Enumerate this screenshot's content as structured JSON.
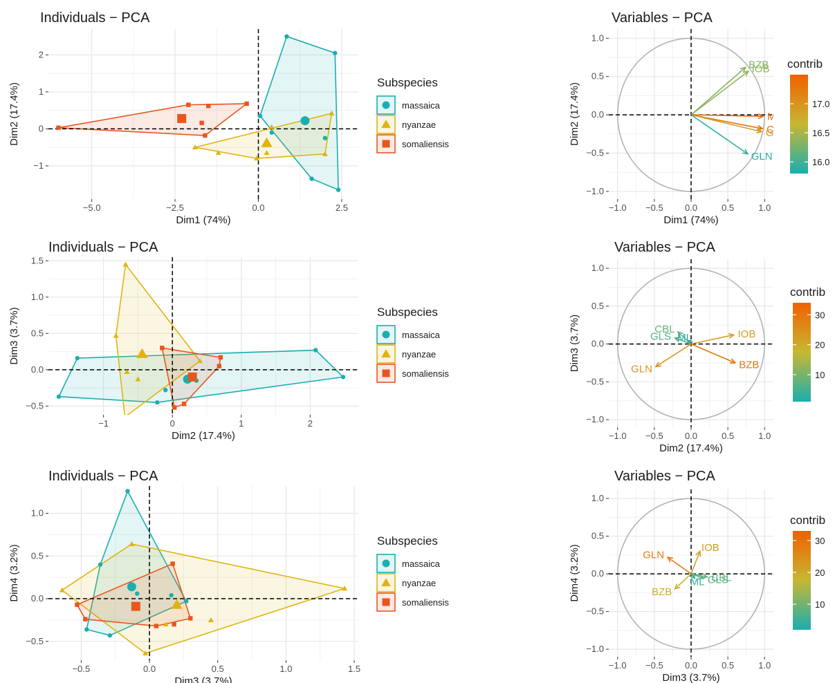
{
  "colors": {
    "massaica": "#1AAEB0",
    "nyanzae": "#E0B40E",
    "somaliensis": "#E8561E",
    "gradient": [
      "#1AAEB0",
      "#C7B732",
      "#F06000"
    ]
  },
  "chart_data": [
    {
      "type": "scatter",
      "id": "ind12",
      "title": "Individuals − PCA",
      "xlabel": "Dim1 (74%)",
      "ylabel": "Dim2 (17.4%)",
      "xlim": [
        -6.3,
        3.0
      ],
      "ylim": [
        -1.9,
        2.7
      ],
      "xticks": [
        -5,
        -2.5,
        0,
        2.5
      ],
      "xticklabels": [
        "−5.0",
        "−2.5",
        "0.0",
        "2.5"
      ],
      "yticks": [
        -1,
        0,
        1,
        2
      ],
      "yticklabels": [
        "−1",
        "0",
        "1",
        "2"
      ],
      "legend_title": "Subspecies",
      "legend_labels": [
        "massaica",
        "nyanzae",
        "somaliensis"
      ],
      "series": [
        {
          "name": "massaica",
          "shape": "circle",
          "points": [
            [
              0.4,
              -0.1
            ],
            [
              0.85,
              2.5
            ],
            [
              2.3,
              2.05
            ],
            [
              2.0,
              -0.25
            ],
            [
              1.6,
              -1.35
            ],
            [
              2.4,
              -1.65
            ],
            [
              0.05,
              0.35
            ]
          ],
          "hull": [
            [
              0.05,
              0.35
            ],
            [
              0.85,
              2.5
            ],
            [
              2.3,
              2.05
            ],
            [
              2.4,
              -1.65
            ],
            [
              1.6,
              -1.35
            ],
            [
              0.05,
              0.35
            ]
          ],
          "centroid": [
            1.4,
            0.22
          ]
        },
        {
          "name": "nyanzae",
          "shape": "triangle",
          "points": [
            [
              -1.9,
              -0.5
            ],
            [
              -1.2,
              -0.65
            ],
            [
              -0.05,
              -0.8
            ],
            [
              0.25,
              -0.65
            ],
            [
              0.4,
              0.05
            ],
            [
              2.2,
              0.42
            ],
            [
              2.0,
              -0.68
            ]
          ],
          "hull": [
            [
              -1.9,
              -0.5
            ],
            [
              2.2,
              0.42
            ],
            [
              2.0,
              -0.68
            ],
            [
              -0.05,
              -0.8
            ],
            [
              -1.9,
              -0.5
            ]
          ],
          "centroid": [
            0.25,
            -0.38
          ]
        },
        {
          "name": "somaliensis",
          "shape": "square",
          "points": [
            [
              -6.0,
              0.03
            ],
            [
              -2.1,
              0.65
            ],
            [
              -1.7,
              0.16
            ],
            [
              -1.5,
              0.62
            ],
            [
              -0.35,
              0.68
            ],
            [
              -1.6,
              -0.18
            ]
          ],
          "hull": [
            [
              -6.0,
              0.03
            ],
            [
              -2.1,
              0.65
            ],
            [
              -0.35,
              0.68
            ],
            [
              -1.6,
              -0.18
            ],
            [
              -6.0,
              0.03
            ]
          ],
          "centroid": [
            -2.3,
            0.28
          ]
        }
      ]
    },
    {
      "type": "vector",
      "id": "var12",
      "title": "Variables − PCA",
      "xlabel": "Dim1 (74%)",
      "ylabel": "Dim2 (17.4%)",
      "xlim": [
        -1.12,
        1.12
      ],
      "ylim": [
        -1.1,
        1.12
      ],
      "xticks": [
        -1,
        -0.5,
        0,
        0.5,
        1
      ],
      "xticklabels": [
        "−1.0",
        "−0.5",
        "0.0",
        "0.5",
        "1.0"
      ],
      "yticks": [
        -1,
        -0.5,
        0,
        0.5,
        1
      ],
      "yticklabels": [
        "−1.0",
        "−0.5",
        "0.0",
        "0.5",
        "1.0"
      ],
      "legend_title": "contrib",
      "color_range": [
        15.8,
        17.5
      ],
      "color_ticks": [
        16.0,
        16.5,
        17.0
      ],
      "color_ticklabels": [
        "16.0",
        "16.5",
        "17.0"
      ],
      "vectors": [
        {
          "name": "BZB",
          "x": 0.74,
          "y": 0.62,
          "contrib": 16.3
        },
        {
          "name": "IOB",
          "x": 0.78,
          "y": 0.57,
          "contrib": 16.4
        },
        {
          "name": "ML",
          "x": 0.98,
          "y": -0.02,
          "contrib": 17.4
        },
        {
          "name": "CBL",
          "x": 0.97,
          "y": -0.18,
          "contrib": 17.3
        },
        {
          "name": "GLS",
          "x": 0.96,
          "y": -0.22,
          "contrib": 16.9
        },
        {
          "name": "GLN",
          "x": 0.77,
          "y": -0.51,
          "contrib": 15.9
        }
      ]
    },
    {
      "type": "scatter",
      "id": "ind23",
      "title": "Individuals − PCA",
      "xlabel": "Dim2 (17.4%)",
      "ylabel": "Dim3 (3.7%)",
      "xlim": [
        -1.8,
        2.7
      ],
      "ylim": [
        -0.62,
        1.55
      ],
      "xticks": [
        -1,
        0,
        1,
        2
      ],
      "xticklabels": [
        "−1",
        "0",
        "1",
        "2"
      ],
      "yticks": [
        -0.5,
        0,
        0.5,
        1,
        1.5
      ],
      "yticklabels": [
        "−0.5",
        "0.0",
        "0.5",
        "1.0",
        "1.5"
      ],
      "legend_title": "Subspecies",
      "legend_labels": [
        "massaica",
        "nyanzae",
        "somaliensis"
      ],
      "series": [
        {
          "name": "massaica",
          "shape": "circle",
          "points": [
            [
              -1.65,
              -0.37
            ],
            [
              -1.38,
              0.16
            ],
            [
              2.08,
              0.27
            ],
            [
              2.48,
              -0.1
            ],
            [
              -0.22,
              -0.45
            ],
            [
              -0.1,
              -0.28
            ],
            [
              0.35,
              -0.15
            ]
          ],
          "hull": [
            [
              -1.65,
              -0.37
            ],
            [
              -1.38,
              0.16
            ],
            [
              2.08,
              0.27
            ],
            [
              2.48,
              -0.1
            ],
            [
              -0.22,
              -0.45
            ],
            [
              -1.65,
              -0.37
            ]
          ],
          "centroid": [
            0.22,
            -0.13
          ]
        },
        {
          "name": "nyanzae",
          "shape": "triangle",
          "points": [
            [
              -0.68,
              1.45
            ],
            [
              -0.82,
              0.47
            ],
            [
              -0.66,
              -0.03
            ],
            [
              -0.5,
              -0.13
            ],
            [
              -0.69,
              -0.65
            ],
            [
              0.4,
              0.12
            ]
          ],
          "hull": [
            [
              -0.68,
              1.45
            ],
            [
              0.4,
              0.12
            ],
            [
              -0.69,
              -0.65
            ],
            [
              -0.82,
              0.47
            ],
            [
              -0.68,
              1.45
            ]
          ],
          "centroid": [
            -0.44,
            0.22
          ]
        },
        {
          "name": "somaliensis",
          "shape": "square",
          "points": [
            [
              -0.15,
              0.3
            ],
            [
              0.7,
              0.17
            ],
            [
              0.68,
              0.05
            ],
            [
              0.03,
              -0.52
            ],
            [
              0.17,
              -0.47
            ]
          ],
          "hull": [
            [
              -0.15,
              0.3
            ],
            [
              0.7,
              0.17
            ],
            [
              0.68,
              0.05
            ],
            [
              0.17,
              -0.47
            ],
            [
              0.03,
              -0.52
            ],
            [
              -0.15,
              0.3
            ]
          ],
          "centroid": [
            0.29,
            -0.1
          ]
        }
      ]
    },
    {
      "type": "vector",
      "id": "var23",
      "title": "Variables − PCA",
      "xlabel": "Dim2 (17.4%)",
      "ylabel": "Dim3 (3.7%)",
      "xlim": [
        -1.12,
        1.12
      ],
      "ylim": [
        -1.1,
        1.12
      ],
      "xticks": [
        -1,
        -0.5,
        0,
        0.5,
        1
      ],
      "xticklabels": [
        "−1.0",
        "−0.5",
        "0.0",
        "0.5",
        "1.0"
      ],
      "yticks": [
        -1,
        -0.5,
        0,
        0.5,
        1
      ],
      "yticklabels": [
        "−1.0",
        "−0.5",
        "0.0",
        "0.5",
        "1.0"
      ],
      "legend_title": "contrib",
      "color_range": [
        1,
        34
      ],
      "color_ticks": [
        10,
        20,
        30
      ],
      "color_ticklabels": [
        "10",
        "20",
        "30"
      ],
      "vectors": [
        {
          "name": "CBL",
          "x": -0.18,
          "y": 0.16,
          "contrib": 8
        },
        {
          "name": "GLS",
          "x": -0.22,
          "y": 0.08,
          "contrib": 6
        },
        {
          "name": "ML",
          "x": -0.05,
          "y": 0.05,
          "contrib": 2
        },
        {
          "name": "IOB",
          "x": 0.58,
          "y": 0.12,
          "contrib": 22
        },
        {
          "name": "BZB",
          "x": 0.6,
          "y": -0.25,
          "contrib": 30
        },
        {
          "name": "GLN",
          "x": -0.48,
          "y": -0.3,
          "contrib": 24
        }
      ]
    },
    {
      "type": "scatter",
      "id": "ind34",
      "title": "Individuals − PCA",
      "xlabel": "Dim3 (3.7%)",
      "ylabel": "Dim4 (3.2%)",
      "xlim": [
        -0.74,
        1.53
      ],
      "ylim": [
        -0.72,
        1.32
      ],
      "xticks": [
        -0.5,
        0,
        0.5,
        1,
        1.5
      ],
      "xticklabels": [
        "−0.5",
        "0.0",
        "0.5",
        "1.0",
        "1.5"
      ],
      "yticks": [
        -0.5,
        0,
        0.5,
        1
      ],
      "yticklabels": [
        "−0.5",
        "0.0",
        "0.5",
        "1.0"
      ],
      "legend_title": "Subspecies",
      "legend_labels": [
        "massaica",
        "nyanzae",
        "somaliensis"
      ],
      "series": [
        {
          "name": "massaica",
          "shape": "circle",
          "points": [
            [
              -0.16,
              1.26
            ],
            [
              -0.36,
              0.4
            ],
            [
              -0.46,
              -0.36
            ],
            [
              -0.29,
              -0.43
            ],
            [
              0.27,
              -0.03
            ],
            [
              0.16,
              0.04
            ],
            [
              -0.09,
              0.06
            ]
          ],
          "hull": [
            [
              -0.16,
              1.26
            ],
            [
              0.27,
              -0.03
            ],
            [
              -0.29,
              -0.43
            ],
            [
              -0.46,
              -0.36
            ],
            [
              -0.36,
              0.4
            ],
            [
              -0.16,
              1.26
            ]
          ],
          "centroid": [
            -0.13,
            0.14
          ]
        },
        {
          "name": "nyanzae",
          "shape": "triangle",
          "points": [
            [
              -0.64,
              0.1
            ],
            [
              -0.13,
              0.64
            ],
            [
              1.43,
              0.12
            ],
            [
              -0.03,
              -0.64
            ],
            [
              0.45,
              -0.25
            ],
            [
              0.2,
              -0.06
            ],
            [
              0.12,
              -0.3
            ]
          ],
          "hull": [
            [
              -0.64,
              0.1
            ],
            [
              -0.13,
              0.64
            ],
            [
              1.43,
              0.12
            ],
            [
              -0.03,
              -0.64
            ],
            [
              -0.64,
              0.1
            ]
          ],
          "centroid": [
            0.2,
            -0.07
          ]
        },
        {
          "name": "somaliensis",
          "shape": "square",
          "points": [
            [
              -0.53,
              -0.07
            ],
            [
              -0.47,
              -0.24
            ],
            [
              0.17,
              0.41
            ],
            [
              0.3,
              -0.23
            ],
            [
              0.05,
              -0.32
            ],
            [
              0.18,
              -0.3
            ]
          ],
          "hull": [
            [
              -0.53,
              -0.07
            ],
            [
              0.17,
              0.41
            ],
            [
              0.3,
              -0.23
            ],
            [
              0.05,
              -0.32
            ],
            [
              -0.47,
              -0.24
            ],
            [
              -0.53,
              -0.07
            ]
          ],
          "centroid": [
            -0.1,
            -0.09
          ]
        }
      ]
    },
    {
      "type": "vector",
      "id": "var34",
      "title": "Variables − PCA",
      "xlabel": "Dim3 (3.7%)",
      "ylabel": "Dim4 (3.2%)",
      "xlim": [
        -1.12,
        1.12
      ],
      "ylim": [
        -1.1,
        1.12
      ],
      "xticks": [
        -1,
        -0.5,
        0,
        0.5,
        1
      ],
      "xticklabels": [
        "−1.0",
        "−0.5",
        "0.0",
        "0.5",
        "1.0"
      ],
      "yticks": [
        -1,
        -0.5,
        0,
        0.5,
        1
      ],
      "yticklabels": [
        "−1.0",
        "−0.5",
        "0.0",
        "0.5",
        "1.0"
      ],
      "legend_title": "contrib",
      "color_range": [
        2,
        33
      ],
      "color_ticks": [
        10,
        20,
        30
      ],
      "color_ticklabels": [
        "10",
        "20",
        "30"
      ],
      "vectors": [
        {
          "name": "GLN",
          "x": -0.32,
          "y": 0.22,
          "contrib": 28
        },
        {
          "name": "IOB",
          "x": 0.12,
          "y": 0.3,
          "contrib": 22
        },
        {
          "name": "BZB",
          "x": -0.22,
          "y": -0.2,
          "contrib": 19
        },
        {
          "name": "ML",
          "x": 0.05,
          "y": -0.06,
          "contrib": 5
        },
        {
          "name": "CBL",
          "x": 0.22,
          "y": -0.04,
          "contrib": 9
        },
        {
          "name": "GLS",
          "x": 0.17,
          "y": -0.06,
          "contrib": 7
        }
      ]
    }
  ]
}
